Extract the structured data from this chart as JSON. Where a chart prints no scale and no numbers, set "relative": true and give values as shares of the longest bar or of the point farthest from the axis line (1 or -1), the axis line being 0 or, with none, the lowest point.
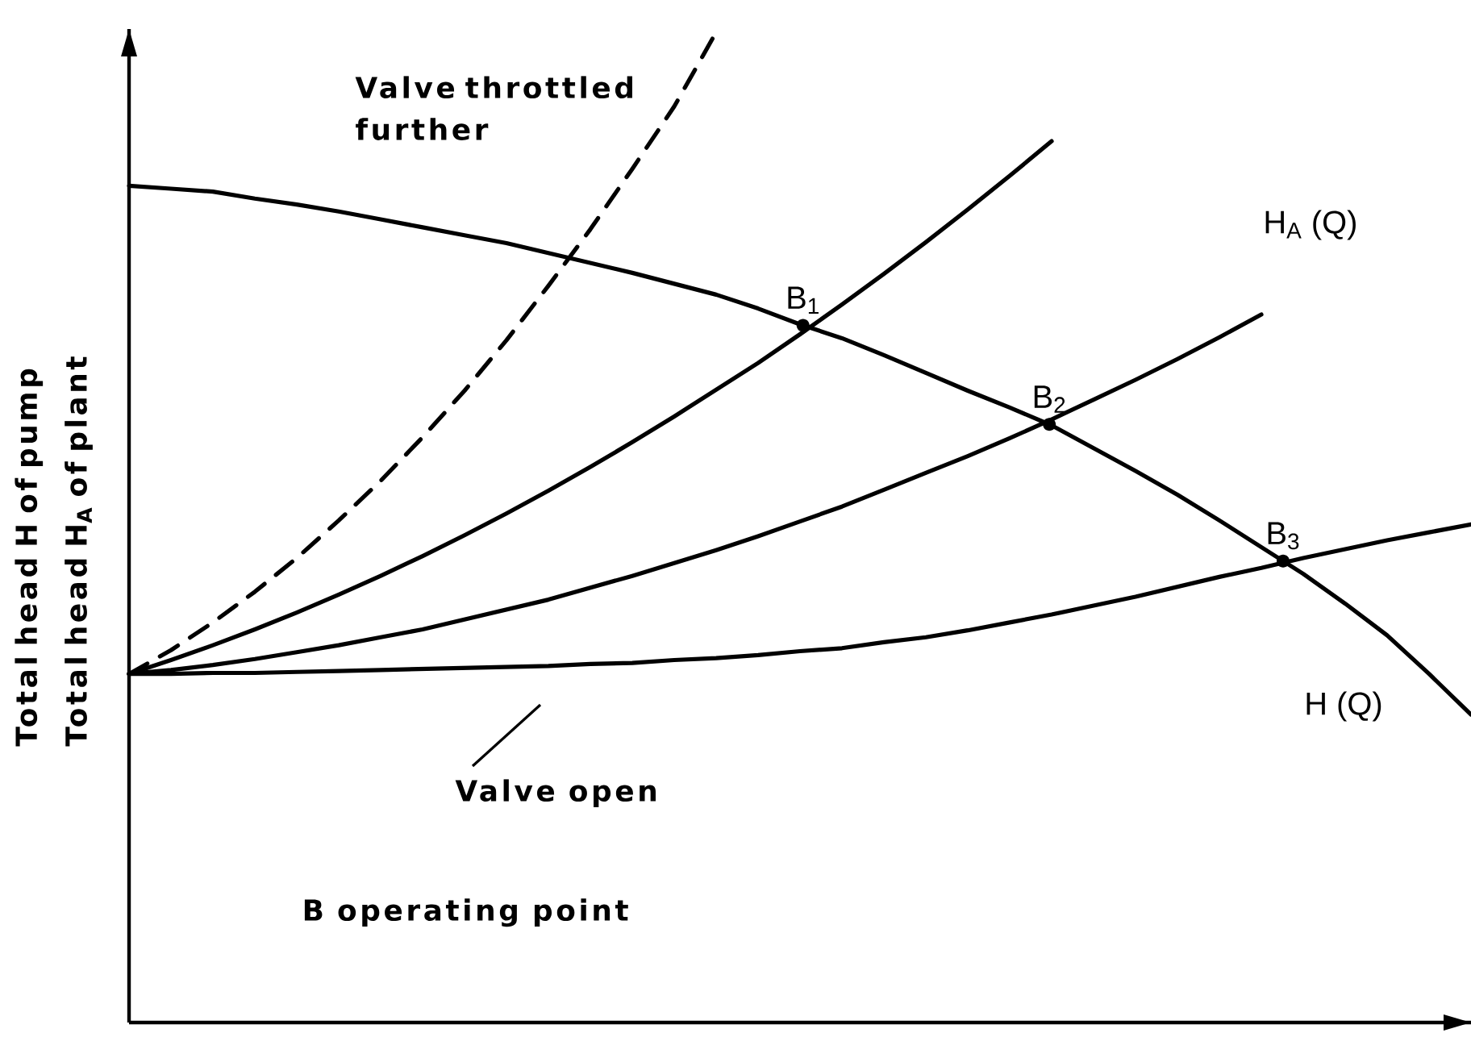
{
  "chart_data": {
    "type": "line",
    "relative": true,
    "ylabel": "Total head H of pump Total head H$_{A}$ of plant",
    "categories": [
      null,
      null,
      null,
      null,
      null,
      null,
      null,
      null,
      null,
      null,
      null,
      null,
      null,
      null,
      null,
      null,
      null,
      null,
      null,
      null,
      null,
      null,
      null,
      null,
      null,
      null,
      null,
      null,
      null,
      null,
      null,
      null,
      null
    ],
    "series": [
      {
        "name": "H (Q)",
        "color": "#000000",
        "values": [
          0.845,
          0.842,
          0.839,
          0.832,
          0.826,
          0.819,
          0.811,
          0.803,
          0.795,
          0.787,
          0.777,
          0.767,
          0.757,
          0.746,
          0.735,
          0.721,
          0.705,
          0.691,
          0.674,
          0.656,
          0.638,
          0.621,
          0.603,
          0.58,
          0.557,
          0.533,
          0.507,
          0.48,
          0.453,
          0.423,
          0.391,
          0.352,
          0.311
        ]
      },
      {
        "name": "Valve throttled further",
        "color": "#000000",
        "line_style": "dashed",
        "values": [
          0.352,
          0.376,
          0.404,
          0.435,
          0.469,
          0.507,
          0.547,
          0.591,
          0.638,
          0.689,
          0.744,
          0.801,
          0.862,
          0.925,
          1.0,
          null,
          null,
          null,
          null,
          null,
          null,
          null,
          null,
          null,
          null,
          null,
          null,
          null,
          null,
          null,
          null,
          null,
          null
        ]
      },
      {
        "color": "#000000",
        "values": [
          0.352,
          0.366,
          0.381,
          0.397,
          0.414,
          0.432,
          0.451,
          0.471,
          0.492,
          0.514,
          0.537,
          0.561,
          0.586,
          0.612,
          0.639,
          0.666,
          0.695,
          0.725,
          0.756,
          0.788,
          0.821,
          0.855,
          0.89,
          null,
          null,
          null,
          null,
          null,
          null,
          null,
          null,
          null,
          null
        ]
      },
      {
        "color": "#000000",
        "values": [
          0.352,
          0.356,
          0.361,
          0.367,
          0.374,
          0.381,
          0.389,
          0.397,
          0.407,
          0.417,
          0.427,
          0.439,
          0.451,
          0.464,
          0.477,
          0.491,
          0.506,
          0.521,
          0.538,
          0.555,
          0.572,
          0.59,
          0.609,
          0.629,
          0.649,
          0.67,
          0.692,
          0.715,
          null,
          null,
          null,
          null,
          null
        ]
      },
      {
        "name": "Valve open",
        "color": "#000000",
        "values": [
          0.352,
          0.352,
          0.353,
          0.353,
          0.354,
          0.355,
          0.356,
          0.357,
          0.358,
          0.359,
          0.36,
          0.362,
          0.363,
          0.366,
          0.368,
          0.371,
          0.375,
          0.378,
          0.384,
          0.389,
          0.396,
          0.404,
          0.412,
          0.421,
          0.43,
          0.44,
          0.45,
          0.459,
          0.469,
          0.478,
          0.487,
          0.495,
          0.503
        ]
      }
    ],
    "annotations": [
      {
        "text": "B$_{1}$",
        "y": 0.704
      },
      {
        "text": "B$_{2}$",
        "y": 0.604
      },
      {
        "text": "B$_{3}$",
        "y": 0.466
      },
      "H$_{A}$ (Q)",
      "B operating point"
    ]
  }
}
